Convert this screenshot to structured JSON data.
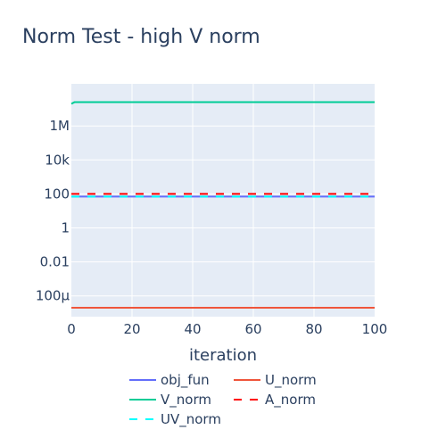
{
  "chart_data": {
    "type": "line",
    "title": "Norm Test - high V norm",
    "xlabel": "iteration",
    "ylabel": "",
    "xlim": [
      0,
      100
    ],
    "ylim": [
      6e-06,
      300000000
    ],
    "y_scale": "log",
    "grid": true,
    "plot_background": "#e5ecf6",
    "legend_placement": "bottom",
    "x_ticks": [
      0,
      20,
      40,
      60,
      80,
      100
    ],
    "x_tick_labels": [
      "0",
      "20",
      "40",
      "60",
      "80",
      "100"
    ],
    "y_ticks": [
      0.0001,
      0.01,
      1,
      100,
      10000,
      1000000
    ],
    "y_tick_labels": [
      "100μ",
      "0.01",
      "1",
      "100",
      "10k",
      "1M"
    ],
    "series": [
      {
        "name": "obj_fun",
        "color": "#636efa",
        "dash": "solid",
        "x": [
          0,
          100
        ],
        "y": [
          70,
          70
        ]
      },
      {
        "name": "U_norm",
        "color": "#ef553b",
        "dash": "solid",
        "x": [
          0,
          100
        ],
        "y": [
          2e-05,
          2e-05
        ]
      },
      {
        "name": "V_norm",
        "color": "#00cc96",
        "dash": "solid",
        "x": [
          0,
          1,
          100
        ],
        "y": [
          20000000,
          25000000,
          25000000
        ]
      },
      {
        "name": "A_norm",
        "color": "#ff0000",
        "dash": "dash",
        "x": [
          0,
          100
        ],
        "y": [
          100,
          100
        ]
      },
      {
        "name": "UV_norm",
        "color": "#00ffff",
        "dash": "dash",
        "x": [
          0,
          100
        ],
        "y": [
          70,
          70
        ]
      }
    ]
  }
}
